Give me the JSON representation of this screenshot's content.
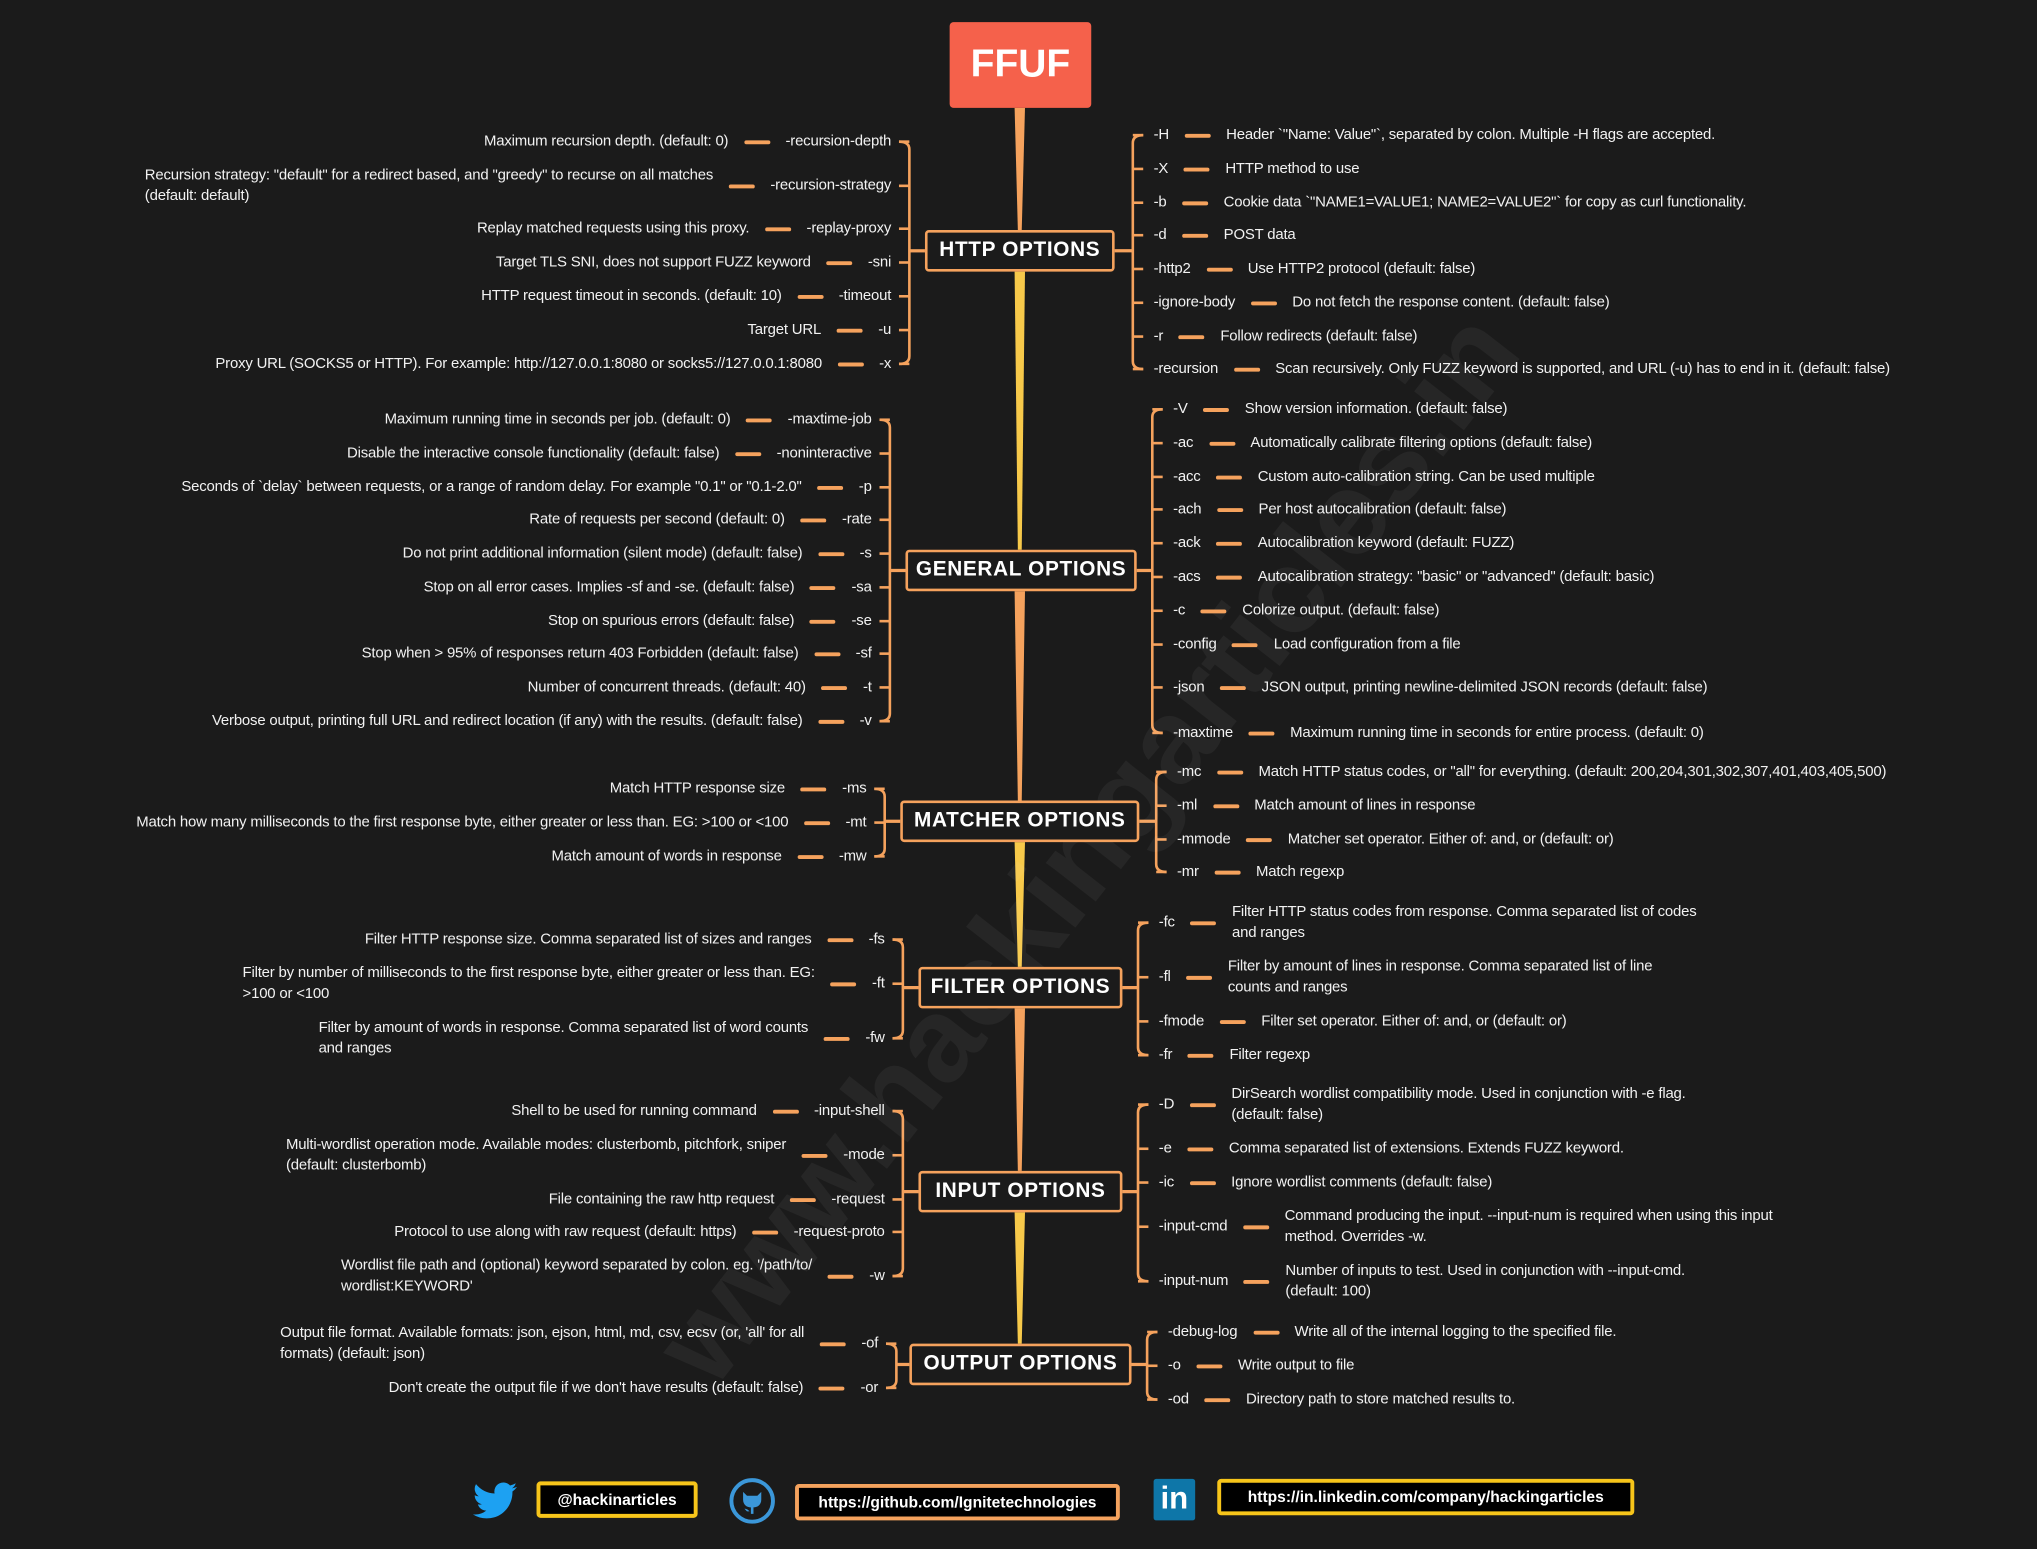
{
  "title": "FFUF",
  "watermark": "www.hackingarticles.in",
  "colors": {
    "title_bg": "#f5614b",
    "branch": "#f5a25d",
    "trunk_yellow": "#f7c94a",
    "trunk_orange": "#f5a25d",
    "background": "#1b1b1b"
  },
  "sections": [
    {
      "label": "HTTP OPTIONS",
      "left": [
        {
          "flag": "-recursion-depth",
          "desc": "Maximum recursion depth. (default: 0)"
        },
        {
          "flag": "-recursion-strategy",
          "desc": "Recursion strategy: \"default\" for a redirect based, and \"greedy\" to recurse on all matches\n(default: default)"
        },
        {
          "flag": "-replay-proxy",
          "desc": "Replay matched requests using this proxy."
        },
        {
          "flag": "-sni",
          "desc": "Target TLS SNI, does not support FUZZ keyword"
        },
        {
          "flag": "-timeout",
          "desc": "HTTP request timeout in seconds. (default: 10)"
        },
        {
          "flag": "-u",
          "desc": "Target URL"
        },
        {
          "flag": "-x",
          "desc": "Proxy URL (SOCKS5 or HTTP). For example: http://127.0.0.1:8080 or socks5://127.0.0.1:8080"
        }
      ],
      "right": [
        {
          "flag": "-H",
          "desc": "Header `\"Name: Value\"`, separated by colon. Multiple -H flags are accepted."
        },
        {
          "flag": "-X",
          "desc": "HTTP method to use"
        },
        {
          "flag": "-b",
          "desc": "Cookie data `\"NAME1=VALUE1; NAME2=VALUE2\"` for copy as curl functionality."
        },
        {
          "flag": "-d",
          "desc": "POST data"
        },
        {
          "flag": "-http2",
          "desc": "Use HTTP2 protocol (default: false)"
        },
        {
          "flag": "-ignore-body",
          "desc": "Do not fetch the response content. (default: false)"
        },
        {
          "flag": "-r",
          "desc": "Follow redirects (default: false)"
        },
        {
          "flag": "-recursion",
          "desc": "Scan recursively. Only FUZZ keyword is supported, and URL (-u) has to end in it. (default: false)"
        }
      ]
    },
    {
      "label": "GENERAL OPTIONS",
      "left": [
        {
          "flag": "-maxtime-job",
          "desc": "Maximum running time in seconds per job. (default: 0)"
        },
        {
          "flag": "-noninteractive",
          "desc": "Disable the interactive console functionality (default: false)"
        },
        {
          "flag": "-p",
          "desc": "Seconds of `delay` between requests, or a range of random delay. For example \"0.1\" or \"0.1-2.0\""
        },
        {
          "flag": "-rate",
          "desc": "Rate of requests per second (default: 0)"
        },
        {
          "flag": "-s",
          "desc": "Do not print additional information (silent mode) (default: false)"
        },
        {
          "flag": "-sa",
          "desc": "Stop on all error cases. Implies -sf and -se. (default: false)"
        },
        {
          "flag": "-se",
          "desc": "Stop on spurious errors (default: false)"
        },
        {
          "flag": "-sf",
          "desc": "Stop when > 95% of responses return 403 Forbidden (default: false)"
        },
        {
          "flag": "-t",
          "desc": "Number of concurrent threads. (default: 40)"
        },
        {
          "flag": "-v",
          "desc": "Verbose output, printing full URL and redirect location (if any) with the results. (default: false)"
        }
      ],
      "right": [
        {
          "flag": "-V",
          "desc": "Show version information. (default: false)"
        },
        {
          "flag": "-ac",
          "desc": "Automatically calibrate filtering options (default: false)"
        },
        {
          "flag": "-acc",
          "desc": "Custom auto-calibration string. Can be used multiple"
        },
        {
          "flag": "-ach",
          "desc": "Per host autocalibration (default: false)"
        },
        {
          "flag": "-ack",
          "desc": "Autocalibration keyword (default: FUZZ)"
        },
        {
          "flag": "-acs",
          "desc": "Autocalibration strategy: \"basic\" or \"advanced\" (default: basic)"
        },
        {
          "flag": "-c",
          "desc": "Colorize output. (default: false)"
        },
        {
          "flag": "-config",
          "desc": "Load configuration from a file"
        },
        {
          "flag": "-json",
          "desc": "JSON output, printing newline-delimited JSON records (default: false)"
        },
        {
          "flag": "-maxtime",
          "desc": "Maximum running time in seconds for entire process. (default: 0)"
        }
      ]
    },
    {
      "label": "MATCHER OPTIONS",
      "left": [
        {
          "flag": "-ms",
          "desc": "Match HTTP response size"
        },
        {
          "flag": "-mt",
          "desc": "Match how many milliseconds to the first response byte, either greater or less than. EG: >100 or <100"
        },
        {
          "flag": "-mw",
          "desc": "Match amount of words in response"
        }
      ],
      "right": [
        {
          "flag": "-mc",
          "desc": "Match HTTP status codes, or \"all\" for everything. (default: 200,204,301,302,307,401,403,405,500)"
        },
        {
          "flag": "-ml",
          "desc": "Match amount of lines in response"
        },
        {
          "flag": "-mmode",
          "desc": "Matcher set operator. Either of: and, or (default: or)"
        },
        {
          "flag": "-mr",
          "desc": "Match regexp"
        }
      ]
    },
    {
      "label": "FILTER OPTIONS",
      "left": [
        {
          "flag": "-fs",
          "desc": "Filter HTTP response size. Comma separated list of sizes and ranges"
        },
        {
          "flag": "-ft",
          "desc": "Filter by number of milliseconds to the first response byte, either greater or less than. EG:\n>100 or <100"
        },
        {
          "flag": "-fw",
          "desc": "Filter by amount of words in response. Comma separated list of word counts\nand ranges"
        }
      ],
      "right": [
        {
          "flag": "-fc",
          "desc": "Filter HTTP status codes from response. Comma separated list of codes\nand ranges"
        },
        {
          "flag": "-fl",
          "desc": "Filter by amount of lines in response. Comma separated list of line\ncounts and ranges"
        },
        {
          "flag": "-fmode",
          "desc": "Filter set operator. Either of: and, or (default: or)"
        },
        {
          "flag": "-fr",
          "desc": "Filter regexp"
        }
      ]
    },
    {
      "label": "INPUT OPTIONS",
      "left": [
        {
          "flag": "-input-shell",
          "desc": "Shell to be used for running command"
        },
        {
          "flag": "-mode",
          "desc": "Multi-wordlist operation mode. Available modes: clusterbomb, pitchfork, sniper\n(default: clusterbomb)"
        },
        {
          "flag": "-request",
          "desc": "File containing the raw http request"
        },
        {
          "flag": "-request-proto",
          "desc": "Protocol to use along with raw request (default: https)"
        },
        {
          "flag": "-w",
          "desc": "Wordlist file path and (optional) keyword separated by colon. eg. '/path/to/\nwordlist:KEYWORD'"
        }
      ],
      "right": [
        {
          "flag": "-D",
          "desc": "DirSearch wordlist compatibility mode. Used in conjunction with -e flag.\n(default: false)"
        },
        {
          "flag": "-e",
          "desc": "Comma separated list of extensions. Extends FUZZ keyword."
        },
        {
          "flag": "-ic",
          "desc": "Ignore wordlist comments (default: false)"
        },
        {
          "flag": "-input-cmd",
          "desc": "Command producing the input. --input-num is required when using this input\nmethod. Overrides -w."
        },
        {
          "flag": "-input-num",
          "desc": "Number of inputs to test. Used in conjunction with --input-cmd.\n(default: 100)"
        }
      ]
    },
    {
      "label": "OUTPUT OPTIONS",
      "left": [
        {
          "flag": "-of",
          "desc": "Output file format. Available formats: json, ejson, html, md, csv, ecsv (or, 'all' for all\nformats) (default: json)"
        },
        {
          "flag": "-or",
          "desc": "Don't create the output file if we don't have results (default: false)"
        }
      ],
      "right": [
        {
          "flag": "-debug-log",
          "desc": "Write all of the internal logging to the specified file."
        },
        {
          "flag": "-o",
          "desc": "Write output to file"
        },
        {
          "flag": "-od",
          "desc": "Directory path to store matched results to."
        }
      ]
    }
  ],
  "footer": {
    "twitter": {
      "icon": "twitter-icon",
      "label": "@hackinarticles"
    },
    "github": {
      "icon": "github-icon",
      "label": "https://github.com/Ignitetechnologies"
    },
    "linkedin": {
      "icon": "linkedin-icon",
      "icon_text": "in",
      "label": "https://in.linkedin.com/company/hackingarticles"
    }
  }
}
